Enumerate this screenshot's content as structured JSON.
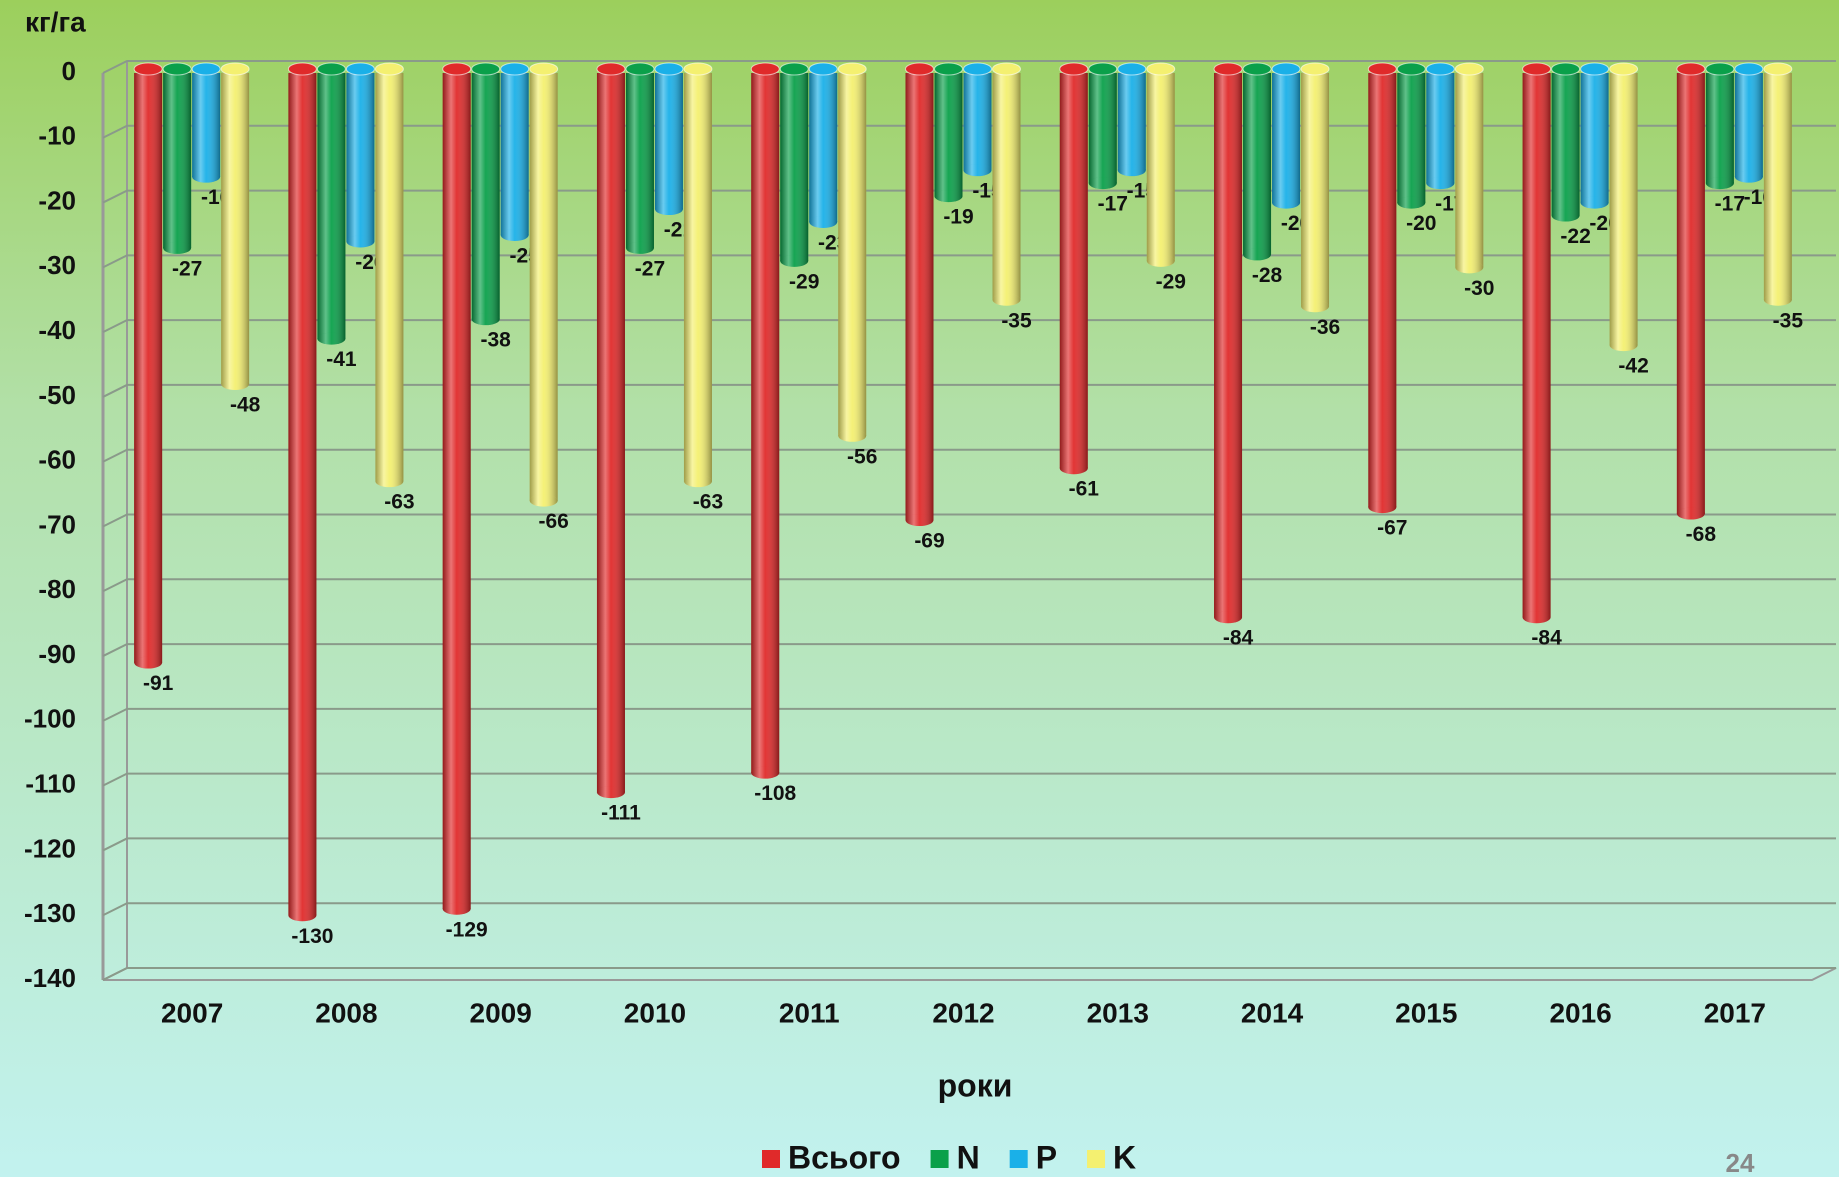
{
  "chart_data": {
    "type": "bar",
    "y_label": "кг/га",
    "x_label": "роки",
    "categories": [
      "2007",
      "2008",
      "2009",
      "2010",
      "2011",
      "2012",
      "2013",
      "2014",
      "2015",
      "2016",
      "2017"
    ],
    "series": [
      {
        "name": "Всього",
        "color": "#e02a2a",
        "values": [
          -91,
          -130,
          -129,
          -111,
          -108,
          -69,
          -61,
          -84,
          -67,
          -84,
          -68
        ]
      },
      {
        "name": "N",
        "color": "#0aa04a",
        "values": [
          -27,
          -41,
          -38,
          -27,
          -29,
          -19,
          -17,
          -28,
          -20,
          -22,
          -17
        ]
      },
      {
        "name": "P",
        "color": "#1ab0e8",
        "values": [
          -16,
          -26,
          -25,
          -21,
          -23,
          -15,
          -15,
          -20,
          -17,
          -20,
          -16
        ]
      },
      {
        "name": "K",
        "color": "#f4f070",
        "values": [
          -48,
          -63,
          -66,
          -63,
          -56,
          -35,
          -29,
          -36,
          -30,
          -42,
          -35
        ]
      }
    ],
    "ylim": [
      -140,
      0
    ],
    "yticks": [
      0,
      -10,
      -20,
      -30,
      -40,
      -50,
      -60,
      -70,
      -80,
      -90,
      -100,
      -110,
      -120,
      -130,
      -140
    ],
    "grid": true,
    "legend": "bottom",
    "page_number": "24"
  }
}
